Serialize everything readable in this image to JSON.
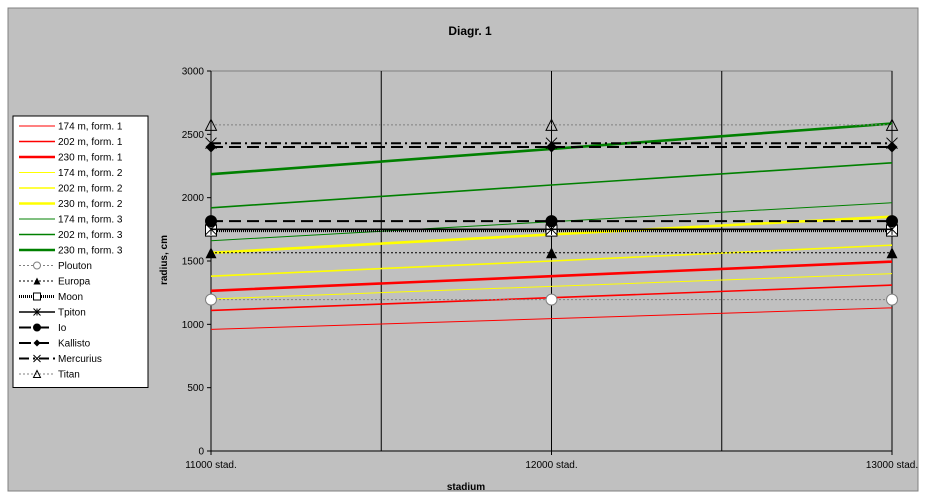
{
  "chart_data": {
    "type": "line",
    "title": "Diagr. 1",
    "xlabel": "stadium",
    "ylabel": "radius, cm",
    "categories": [
      "11000 stad.",
      "12000 stad.",
      "13000 stad."
    ],
    "y_ticks": [
      "0",
      "500",
      "1000",
      "1500",
      "2000",
      "2500",
      "3000"
    ],
    "ylim": [
      0,
      3000
    ],
    "grid": "vertical lines at categories and midpoints",
    "legend_position": "left",
    "background_color": "#c0c0c0",
    "series": [
      {
        "name": "174 m, form. 1",
        "values": [
          960,
          1045,
          1130
        ],
        "color": "#ff0000",
        "width": 1,
        "dash": "",
        "marker": "none"
      },
      {
        "name": "202 m, form. 1",
        "values": [
          1110,
          1210,
          1310
        ],
        "color": "#ff0000",
        "width": 1.6,
        "dash": "",
        "marker": "none"
      },
      {
        "name": "230 m, form. 1",
        "values": [
          1265,
          1380,
          1495
        ],
        "color": "#ff0000",
        "width": 2.6,
        "dash": "",
        "marker": "none"
      },
      {
        "name": "174 m, form. 2",
        "values": [
          1200,
          1300,
          1400
        ],
        "color": "#ffff00",
        "width": 1,
        "dash": "",
        "marker": "none"
      },
      {
        "name": "202 m, form. 2",
        "values": [
          1380,
          1500,
          1625
        ],
        "color": "#ffff00",
        "width": 1.6,
        "dash": "",
        "marker": "none"
      },
      {
        "name": "230 m, form. 2",
        "values": [
          1565,
          1710,
          1850
        ],
        "color": "#ffff00",
        "width": 2.6,
        "dash": "",
        "marker": "none"
      },
      {
        "name": "174 m, form. 3",
        "values": [
          1660,
          1810,
          1960
        ],
        "color": "#008000",
        "width": 1,
        "dash": "",
        "marker": "none"
      },
      {
        "name": "202 m, form. 3",
        "values": [
          1920,
          2100,
          2275
        ],
        "color": "#008000",
        "width": 1.6,
        "dash": "",
        "marker": "none"
      },
      {
        "name": "230 m, form. 3",
        "values": [
          2185,
          2385,
          2585
        ],
        "color": "#008000",
        "width": 2.6,
        "dash": "",
        "marker": "none"
      },
      {
        "name": "Plouton",
        "values": [
          1195,
          1195,
          1195
        ],
        "color": "#808080",
        "width": 1,
        "dash": "2,2",
        "marker": "circle-open"
      },
      {
        "name": "Europa",
        "values": [
          1565,
          1565,
          1565
        ],
        "color": "#000000",
        "width": 1,
        "dash": "2,2",
        "marker": "triangle-filled"
      },
      {
        "name": "Moon",
        "values": [
          1740,
          1740,
          1740
        ],
        "color": "#000000",
        "width": 3,
        "dash": "1,1",
        "marker": "square-open"
      },
      {
        "name": "Tpiton",
        "values": [
          1750,
          1750,
          1750
        ],
        "color": "#000000",
        "width": 1.6,
        "dash": "",
        "marker": "star"
      },
      {
        "name": "Io",
        "values": [
          1815,
          1815,
          1815
        ],
        "color": "#000000",
        "width": 2,
        "dash": "12,6",
        "marker": "circle-filled"
      },
      {
        "name": "Kallisto",
        "values": [
          2400,
          2400,
          2400
        ],
        "color": "#000000",
        "width": 2,
        "dash": "12,6",
        "marker": "diamond-filled"
      },
      {
        "name": "Mercurius",
        "values": [
          2430,
          2430,
          2430
        ],
        "color": "#000000",
        "width": 2,
        "dash": "10,4,2,4",
        "marker": "x"
      },
      {
        "name": "Titan",
        "values": [
          2575,
          2575,
          2575
        ],
        "color": "#808080",
        "width": 1,
        "dash": "2,2",
        "marker": "triangle-open"
      }
    ]
  }
}
